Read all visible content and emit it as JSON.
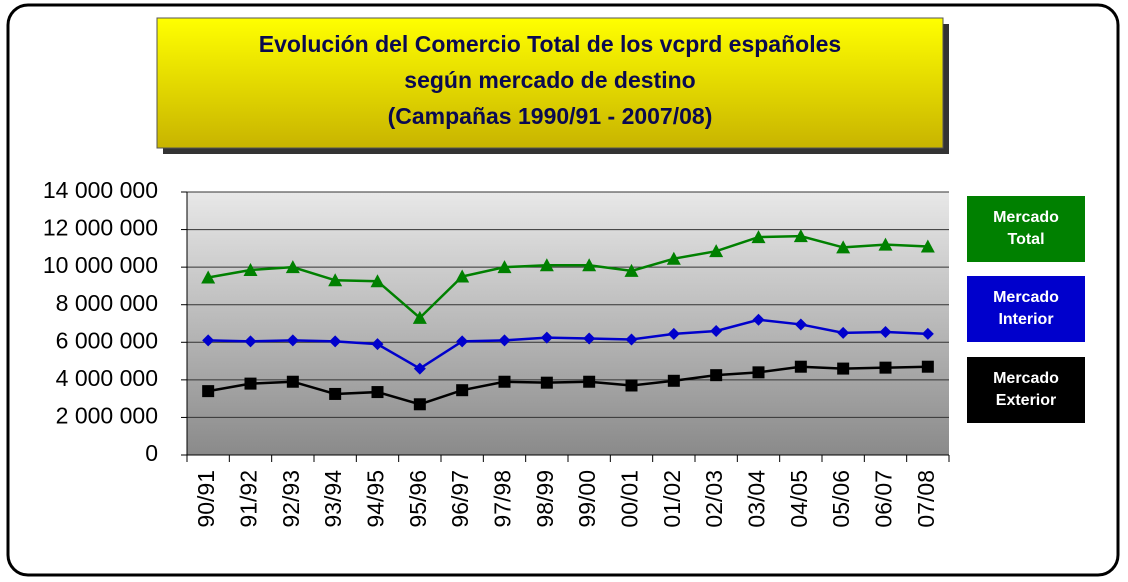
{
  "chart_data": {
    "type": "line",
    "title": [
      "Evolución del Comercio Total de los vcprd españoles",
      "según mercado de destino",
      "(Campañas 1990/91 - 2007/08)"
    ],
    "categories": [
      "90/91",
      "91/92",
      "92/93",
      "93/94",
      "94/95",
      "95/96",
      "96/97",
      "97/98",
      "98/99",
      "99/00",
      "00/01",
      "01/02",
      "02/03",
      "03/04",
      "04/05",
      "05/06",
      "06/07",
      "07/08"
    ],
    "series": [
      {
        "name": "Mercado Total",
        "color": "#008000",
        "marker": "triangle",
        "values": [
          9450000,
          9850000,
          10000000,
          9300000,
          9250000,
          7300000,
          9500000,
          10000000,
          10100000,
          10100000,
          9800000,
          10450000,
          10850000,
          11600000,
          11650000,
          11050000,
          11200000,
          11100000
        ]
      },
      {
        "name": "Mercado Interior",
        "color": "#0000cc",
        "marker": "diamond",
        "values": [
          6100000,
          6050000,
          6100000,
          6050000,
          5900000,
          4600000,
          6050000,
          6100000,
          6250000,
          6200000,
          6150000,
          6450000,
          6600000,
          7200000,
          6950000,
          6500000,
          6550000,
          6450000
        ]
      },
      {
        "name": "Mercado Exterior",
        "color": "#000000",
        "marker": "square",
        "values": [
          3400000,
          3800000,
          3900000,
          3250000,
          3350000,
          2700000,
          3450000,
          3900000,
          3850000,
          3900000,
          3700000,
          3950000,
          4250000,
          4400000,
          4700000,
          4600000,
          4650000,
          4700000
        ]
      }
    ],
    "ylim": [
      0,
      14000000
    ],
    "yticks": [
      0,
      {
        "value": 2000000,
        "label": "2 000 000"
      },
      {
        "value": 4000000,
        "label": "4 000 000"
      },
      {
        "value": 6000000,
        "label": "6 000 000"
      },
      {
        "value": 8000000,
        "label": "8 000 000"
      },
      {
        "value": 10000000,
        "label": "10 000 000"
      },
      {
        "value": 12000000,
        "label": "12 000 000"
      },
      {
        "value": 14000000,
        "label": "14 000 000"
      }
    ],
    "grid": true,
    "legend": "right"
  }
}
